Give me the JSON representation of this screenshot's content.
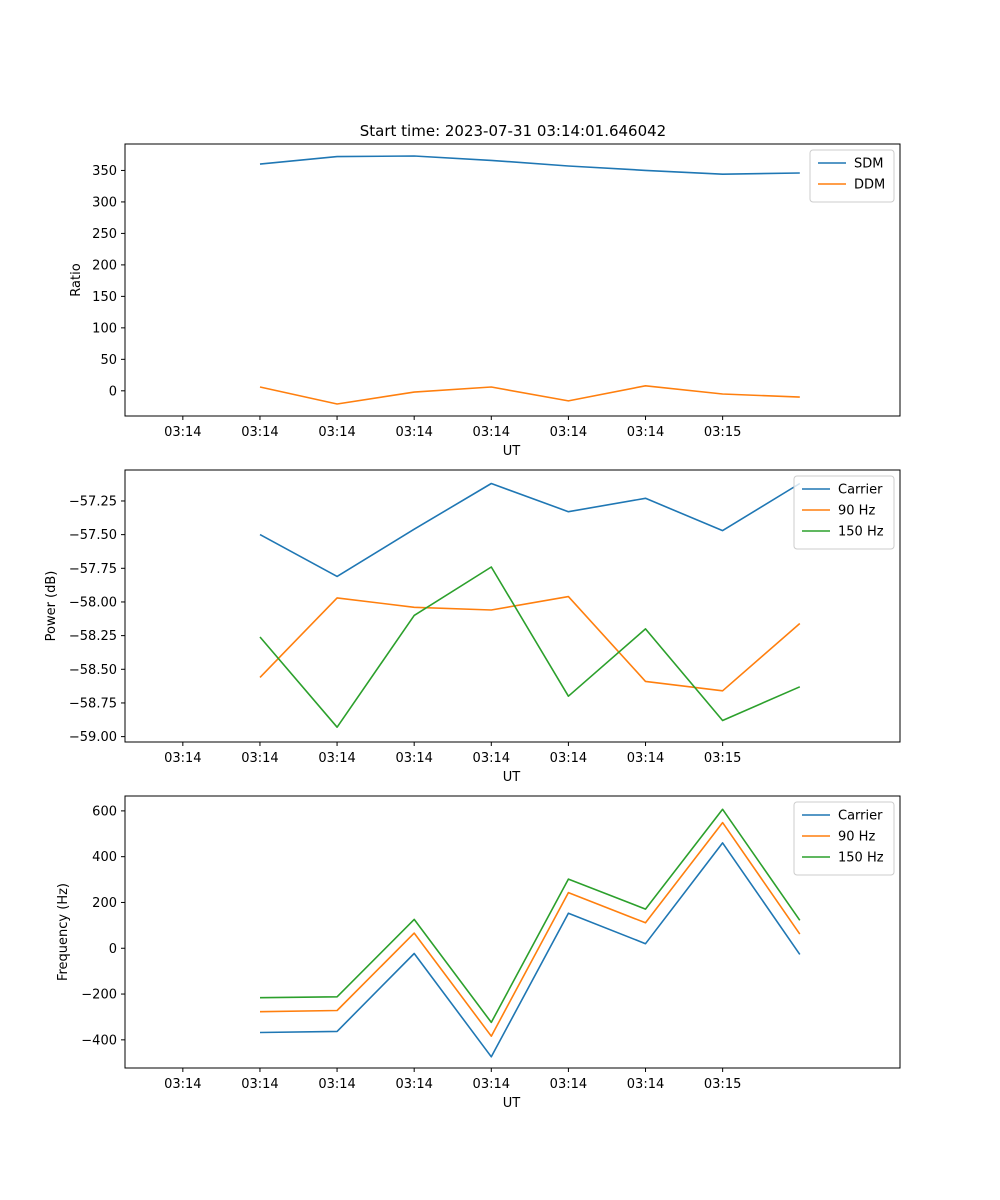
{
  "title": "Start time: 2023-07-31 03:14:01.646042",
  "colors": {
    "blue": "#1f77b4",
    "orange": "#ff7f0e",
    "green": "#2ca02c"
  },
  "chart_data": [
    {
      "type": "line",
      "xlabel": "UT",
      "ylabel": "Ratio",
      "x_tick_labels": [
        "03:14",
        "03:14",
        "03:14",
        "03:14",
        "03:14",
        "03:14",
        "03:14",
        "03:15"
      ],
      "xlim": [
        -0.75,
        9.3
      ],
      "x": [
        1,
        2,
        3,
        4,
        5,
        6,
        7,
        8
      ],
      "ylim": [
        -40,
        392
      ],
      "y_ticks": [
        0,
        50,
        100,
        150,
        200,
        250,
        300,
        350
      ],
      "y_tick_labels": [
        "0",
        "50",
        "100",
        "150",
        "200",
        "250",
        "300",
        "350"
      ],
      "legend": "upper right",
      "series": [
        {
          "name": "SDM",
          "color": "#1f77b4",
          "values": [
            360,
            372,
            373,
            366,
            357,
            350,
            344,
            346
          ]
        },
        {
          "name": "DDM",
          "color": "#ff7f0e",
          "values": [
            6,
            -21,
            -2,
            6,
            -16,
            8,
            -5,
            -10
          ]
        }
      ]
    },
    {
      "type": "line",
      "xlabel": "UT",
      "ylabel": "Power (dB)",
      "x_tick_labels": [
        "03:14",
        "03:14",
        "03:14",
        "03:14",
        "03:14",
        "03:14",
        "03:14",
        "03:15"
      ],
      "xlim": [
        -0.75,
        9.3
      ],
      "x": [
        1,
        2,
        3,
        4,
        5,
        6,
        7,
        8
      ],
      "ylim": [
        -59.04,
        -57.02
      ],
      "y_ticks": [
        -59.0,
        -58.75,
        -58.5,
        -58.25,
        -58.0,
        -57.75,
        -57.5,
        -57.25
      ],
      "y_tick_labels": [
        "−59.00",
        "−58.75",
        "−58.50",
        "−58.25",
        "−58.00",
        "−57.75",
        "−57.50",
        "−57.25"
      ],
      "legend": "upper right",
      "series": [
        {
          "name": "Carrier",
          "color": "#1f77b4",
          "values": [
            -57.5,
            -57.81,
            -57.46,
            -57.12,
            -57.33,
            -57.23,
            -57.47,
            -57.12
          ]
        },
        {
          "name": "90 Hz",
          "color": "#ff7f0e",
          "values": [
            -58.56,
            -57.97,
            -58.04,
            -58.06,
            -57.96,
            -58.59,
            -58.66,
            -58.16
          ]
        },
        {
          "name": "150 Hz",
          "color": "#2ca02c",
          "values": [
            -58.26,
            -58.93,
            -58.1,
            -57.74,
            -58.7,
            -58.2,
            -58.88,
            -58.63
          ]
        }
      ]
    },
    {
      "type": "line",
      "xlabel": "UT",
      "ylabel": "Frequency (Hz)",
      "x_tick_labels": [
        "03:14",
        "03:14",
        "03:14",
        "03:14",
        "03:14",
        "03:14",
        "03:14",
        "03:15"
      ],
      "xlim": [
        -0.75,
        9.3
      ],
      "x": [
        1,
        2,
        3,
        4,
        5,
        6,
        7,
        8
      ],
      "ylim": [
        -523,
        665
      ],
      "y_ticks": [
        -400,
        -200,
        0,
        200,
        400,
        600
      ],
      "y_tick_labels": [
        "−400",
        "−200",
        "0",
        "200",
        "400",
        "600"
      ],
      "legend": "upper right",
      "series": [
        {
          "name": "Carrier",
          "color": "#1f77b4",
          "values": [
            -368,
            -363,
            -23,
            -474,
            153,
            20,
            460,
            -27
          ]
        },
        {
          "name": "90 Hz",
          "color": "#ff7f0e",
          "values": [
            -277,
            -272,
            66,
            -384,
            243,
            111,
            549,
            62
          ]
        },
        {
          "name": "150 Hz",
          "color": "#2ca02c",
          "values": [
            -216,
            -212,
            126,
            -324,
            302,
            171,
            607,
            122
          ]
        }
      ]
    }
  ]
}
